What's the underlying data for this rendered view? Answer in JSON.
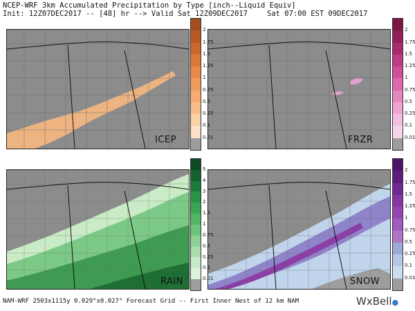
{
  "header": {
    "line1": "NCEP-WRF 3km Accumulated Precipitation by Type [inch--Liquid Equiv]",
    "line2": "Init: 12Z07DEC2017 -- [48] hr --> Valid Sat 12Z09DEC2017",
    "line2_right": "Sat 07:00 EST 09DEC2017"
  },
  "panels": [
    {
      "id": "icep",
      "label": "ICEP",
      "ticks": [
        "2",
        "1.75",
        "1.5",
        "1.25",
        "1",
        "0.75",
        "0.5",
        "0.25",
        "0.1",
        "0.01"
      ],
      "colors": [
        "#a34e1e",
        "#b85a24",
        "#cc682d",
        "#dd7936",
        "#e8894a",
        "#f09a5c",
        "#f5ab72",
        "#f8bd8a",
        "#fbd1a8",
        "#fde2c8",
        "#9d9d9d"
      ]
    },
    {
      "id": "frzr",
      "label": "FRZR",
      "ticks": [
        "2",
        "1.75",
        "1.5",
        "1.25",
        "1",
        "0.75",
        "0.5",
        "0.25",
        "0.1",
        "0.01"
      ],
      "colors": [
        "#7a1742",
        "#92205a",
        "#aa2a70",
        "#c03a85",
        "#d04f98",
        "#dd69ad",
        "#e686c0",
        "#eea3d1",
        "#f2bde0",
        "#f5d4ea",
        "#9d9d9d"
      ]
    },
    {
      "id": "rain",
      "label": "RAIN",
      "ticks": [
        "5",
        "4",
        "3",
        "2",
        "1.5",
        "1",
        "0.75",
        "0.5",
        "0.25",
        "0.1",
        "0.01"
      ],
      "colors": [
        "#0e4b22",
        "#16622e",
        "#1f7a3a",
        "#2a9246",
        "#3aa553",
        "#52b564",
        "#6cc47a",
        "#8bd294",
        "#a9ddae",
        "#c6e9c8",
        "#ddf2dc",
        "#9d9d9d"
      ]
    },
    {
      "id": "snow",
      "label": "SNOW",
      "ticks": [
        "2",
        "1.75",
        "1.5",
        "1.25",
        "1",
        "0.75",
        "0.5",
        "0.25",
        "0.1",
        "0.01"
      ],
      "colors": [
        "#4b1466",
        "#5e1d7c",
        "#712892",
        "#8436a5",
        "#9545b3",
        "#a35abf",
        "#b075c9",
        "#9fa9d8",
        "#b6c6e6",
        "#cddbf1",
        "#9d9d9d"
      ]
    }
  ],
  "footer": "NAM-WRF 2503x1115y 0.029°x0.027° Forecast Grid -- First Inner Nest of 12 km NAM",
  "logo": "WxBell",
  "colors": {
    "land": "#8c8c8c",
    "border": "#222222"
  }
}
